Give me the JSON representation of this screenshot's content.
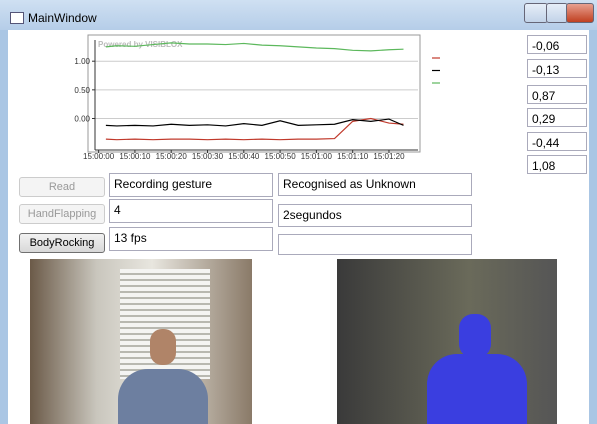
{
  "window": {
    "title": "MainWindow"
  },
  "chart_data": {
    "type": "line",
    "watermark": "Powered by VISIBLOX",
    "x": [
      "15:00:02",
      "15:00:05",
      "15:00:10",
      "15:00:15",
      "15:00:20",
      "15:00:25",
      "15:00:30",
      "15:00:35",
      "15:00:40",
      "15:00:45",
      "15:00:50",
      "15:00:55",
      "15:01:00",
      "15:01:05",
      "15:01:10",
      "15:01:15",
      "15:01:20",
      "15:01:24"
    ],
    "series": [
      {
        "color": "#c0392b",
        "values": [
          -0.36,
          -0.37,
          -0.36,
          -0.37,
          -0.36,
          -0.36,
          -0.37,
          -0.36,
          -0.37,
          -0.36,
          -0.37,
          -0.36,
          -0.36,
          -0.35,
          -0.05,
          0.0,
          -0.08,
          -0.1
        ]
      },
      {
        "color": "#000000",
        "values": [
          -0.12,
          -0.13,
          -0.12,
          -0.13,
          -0.1,
          -0.12,
          -0.11,
          -0.13,
          -0.09,
          -0.12,
          -0.04,
          -0.12,
          -0.11,
          -0.1,
          -0.02,
          -0.05,
          -0.01,
          -0.12
        ]
      },
      {
        "color": "#5cb85c",
        "values": [
          1.25,
          1.27,
          1.26,
          1.29,
          1.32,
          1.3,
          1.3,
          1.29,
          1.31,
          1.28,
          1.27,
          1.25,
          1.23,
          1.22,
          1.19,
          1.18,
          1.2,
          1.21
        ]
      }
    ],
    "xlim": [
      "14:59:59",
      "15:01:28"
    ],
    "xticks": [
      "15:00:00",
      "15:00:10",
      "15:00:20",
      "15:00:30",
      "15:00:40",
      "15:00:50",
      "15:01:00",
      "15:01:10",
      "15:01:20"
    ],
    "ylim": [
      -0.55,
      1.37
    ],
    "yticks": [
      {
        "value": 0,
        "label": "0.00"
      },
      {
        "value": 0.5,
        "label": "0.50"
      },
      {
        "value": 1,
        "label": "1.00"
      }
    ],
    "grid": true
  },
  "readouts": [
    "-0,06",
    "-0,13",
    "0,87",
    "0,29",
    "-0,44",
    "1,08"
  ],
  "buttons": [
    "Read",
    "HandFlapping",
    "BodyRocking"
  ],
  "status_left": [
    "Recording gesture",
    "4",
    "13 fps"
  ],
  "status_right": [
    "Recognised as Unknown",
    "2segundos"
  ]
}
